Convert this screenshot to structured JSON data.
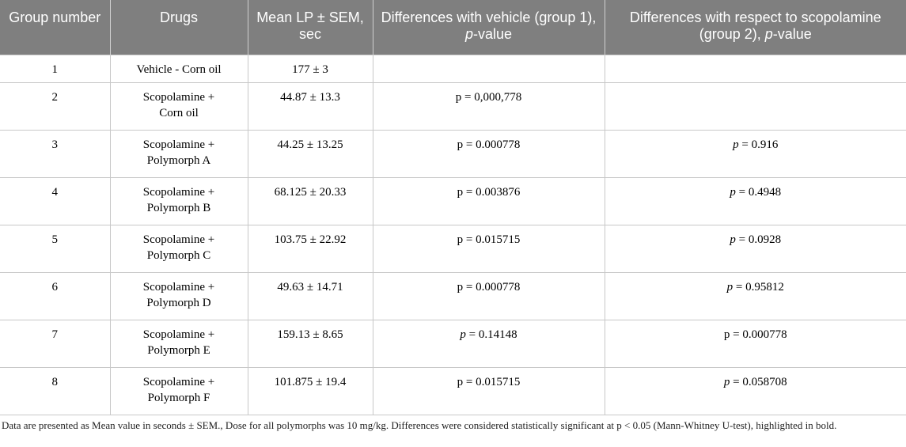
{
  "table": {
    "headers": [
      "Group number",
      "Drugs",
      "Mean LP ± SEM, sec",
      [
        "Differences with vehicle (group 1), ",
        "p",
        "-value"
      ],
      [
        "Differences with respect to scopolamine (group 2), ",
        "p",
        "-value"
      ]
    ],
    "header_text": {
      "group": "Group number",
      "drugs": "Drugs",
      "mean": "Mean LP ± SEM, sec",
      "vehicle_pre": "Differences with vehicle (group 1), ",
      "vehicle_p": "p",
      "vehicle_post": "-value",
      "scop_pre": "Differences with respect to scopolamine (group 2), ",
      "scop_p": "p",
      "scop_post": "-value"
    },
    "rows": [
      {
        "group": "1",
        "drug_line1": "Vehicle - Corn oil",
        "drug_line2": "",
        "mean": "177 ± 3",
        "vs_vehicle_p": "",
        "vs_vehicle_val": "",
        "vs_scop_p": "",
        "vs_scop_val": ""
      },
      {
        "group": "2",
        "drug_line1": "Scopolamine +",
        "drug_line2": "Corn oil",
        "mean": "44.87 ± 13.3",
        "vs_vehicle_p": "p",
        "vs_vehicle_val": " = 0,000,778",
        "vs_scop_p": "",
        "vs_scop_val": ""
      },
      {
        "group": "3",
        "drug_line1": "Scopolamine +",
        "drug_line2": "Polymorph A",
        "mean": "44.25 ± 13.25",
        "vs_vehicle_p": "p",
        "vs_vehicle_val": " = 0.000778",
        "vs_scop_p": "p",
        "vs_scop_val": " = 0.916"
      },
      {
        "group": "4",
        "drug_line1": "Scopolamine +",
        "drug_line2": "Polymorph B",
        "mean": "68.125 ± 20.33",
        "vs_vehicle_p": "p",
        "vs_vehicle_val": " = 0.003876",
        "vs_scop_p": "p",
        "vs_scop_val": " = 0.4948"
      },
      {
        "group": "5",
        "drug_line1": "Scopolamine +",
        "drug_line2": "Polymorph C",
        "mean": "103.75 ± 22.92",
        "vs_vehicle_p": "p",
        "vs_vehicle_val": " = 0.015715",
        "vs_scop_p": "p",
        "vs_scop_val": " = 0.0928"
      },
      {
        "group": "6",
        "drug_line1": "Scopolamine +",
        "drug_line2": "Polymorph D",
        "mean": "49.63 ± 14.71",
        "vs_vehicle_p": "p",
        "vs_vehicle_val": " = 0.000778",
        "vs_scop_p": "p",
        "vs_scop_val": " = 0.95812"
      },
      {
        "group": "7",
        "drug_line1": "Scopolamine +",
        "drug_line2": "Polymorph E",
        "mean": "159.13 ± 8.65",
        "vs_vehicle_p": "p",
        "vs_vehicle_val": " = 0.14148",
        "vs_scop_p": "p",
        "vs_scop_val": " = 0.000778"
      },
      {
        "group": "8",
        "drug_line1": "Scopolamine +",
        "drug_line2": "Polymorph F",
        "mean": "101.875 ± 19.4",
        "vs_vehicle_p": "p",
        "vs_vehicle_val": " = 0.015715",
        "vs_scop_p": "p",
        "vs_scop_val": " = 0.058708"
      }
    ],
    "italic_p_flags": {
      "vs_vehicle": [
        false,
        false,
        false,
        false,
        false,
        false,
        true,
        false
      ],
      "vs_scop": [
        false,
        false,
        true,
        true,
        true,
        true,
        false,
        true
      ]
    }
  },
  "footnote": "Data are presented as Mean value in seconds ± SEM., Dose for all polymorphs was 10 mg/kg. Differences were considered statistically significant at p < 0.05 (Mann-Whitney U-test), highlighted in bold.",
  "colors": {
    "header_bg": "#7f7f7f",
    "header_text": "#ffffff",
    "grid": "#c8c8c8"
  }
}
